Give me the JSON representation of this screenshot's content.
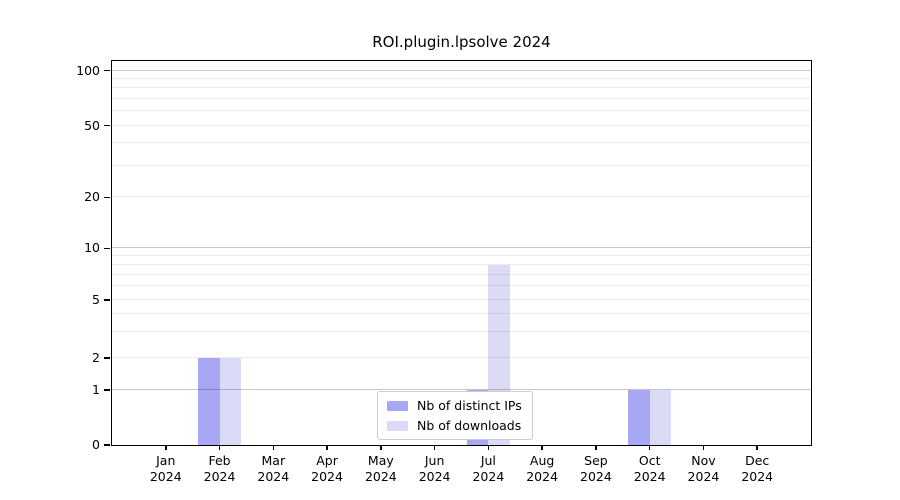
{
  "chart_data": {
    "type": "bar",
    "title": "ROI.plugin.lpsolve 2024",
    "categories": [
      "Jan 2024",
      "Feb 2024",
      "Mar 2024",
      "Apr 2024",
      "May 2024",
      "Jun 2024",
      "Jul 2024",
      "Aug 2024",
      "Sep 2024",
      "Oct 2024",
      "Nov 2024",
      "Dec 2024"
    ],
    "series": [
      {
        "name": "Nb of distinct IPs",
        "color": "#a7a7f4",
        "values": [
          0,
          2,
          0,
          0,
          0,
          0,
          1,
          0,
          0,
          1,
          0,
          0
        ]
      },
      {
        "name": "Nb of downloads",
        "color": "#dbdbf8",
        "values": [
          0,
          2,
          0,
          0,
          0,
          0,
          8,
          0,
          0,
          1,
          0,
          0
        ]
      }
    ],
    "xlabel": "",
    "ylabel": "",
    "y_ticks": [
      0,
      1,
      2,
      5,
      10,
      20,
      50,
      100
    ],
    "ylim": [
      0,
      110
    ],
    "grid": true,
    "scale_note": "log-like y scale with linear segment from 0 to 1",
    "legend_position": "inside-bottom-center",
    "major_grid_values": [
      1,
      10,
      100
    ],
    "minor_grid_values": [
      2,
      3,
      4,
      5,
      6,
      7,
      8,
      9,
      20,
      30,
      40,
      50,
      60,
      70,
      80,
      90
    ],
    "y_scale_anchors": [
      [
        0,
        0
      ],
      [
        1,
        0.1432
      ],
      [
        2,
        0.2266
      ],
      [
        5,
        0.3776
      ],
      [
        10,
        0.5122
      ],
      [
        20,
        0.645
      ],
      [
        50,
        0.8315
      ],
      [
        100,
        0.9747
      ]
    ]
  },
  "colors": {
    "frame": "#000000",
    "legend_border": "#cccccc",
    "background": "#ffffff"
  }
}
